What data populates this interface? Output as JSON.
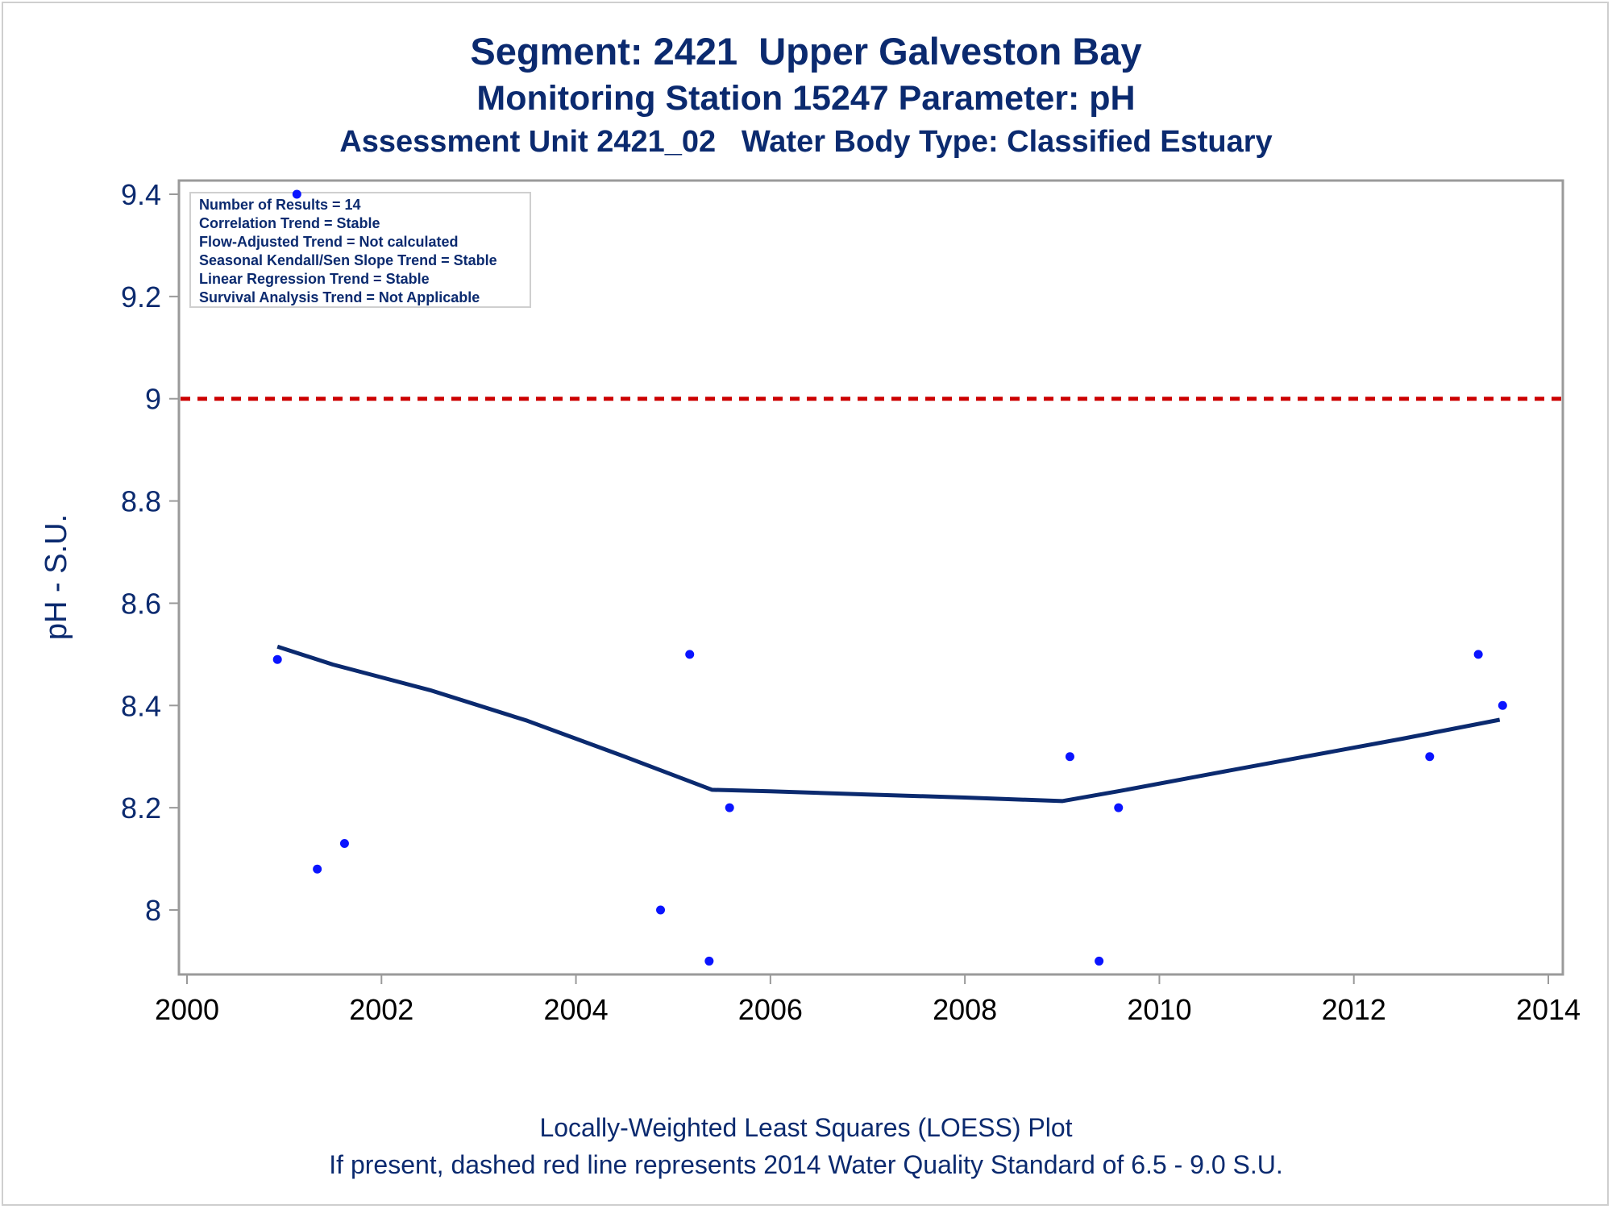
{
  "titles": {
    "line1": "Segment: 2421  Upper Galveston Bay",
    "line2": "Monitoring Station 15247 Parameter: pH",
    "line3": "Assessment Unit 2421_02   Water Body Type: Classified Estuary"
  },
  "footnotes": {
    "line1": "Locally-Weighted Least Squares (LOESS) Plot",
    "line2": "If present, dashed red line represents 2014 Water Quality Standard of 6.5 - 9.0 S.U."
  },
  "stats_box": {
    "lines": [
      "Number of Results = 14",
      "Correlation Trend = Stable",
      "Flow-Adjusted Trend = Not calculated",
      "Seasonal Kendall/Sen Slope Trend = Stable",
      "Linear Regression Trend = Stable",
      "Survival Analysis Trend = Not Applicable"
    ]
  },
  "colors": {
    "text": "#0b2a6f",
    "points": "#0a14ff",
    "loess": "#0b2a6f",
    "standard_line": "#cc0000",
    "axis": "#9a9a9a"
  },
  "chart_data": {
    "type": "scatter",
    "ylabel": "pH - S.U.",
    "xlabel": "",
    "xlim": [
      2000,
      2014
    ],
    "ylim": [
      7.9,
      9.42
    ],
    "x_ticks": [
      2000,
      2002,
      2004,
      2006,
      2008,
      2010,
      2012,
      2014
    ],
    "y_ticks": [
      8,
      8.2,
      8.4,
      8.6,
      8.8,
      9,
      9.2,
      9.4
    ],
    "y_tick_labels": [
      "8",
      "8.2",
      "8.4",
      "8.6",
      "8.8",
      "9",
      "9.2",
      "9.4"
    ],
    "grid": false,
    "series": [
      {
        "kind": "points",
        "x": [
          2000.93,
          2001.13,
          2001.34,
          2001.62,
          2004.87,
          2005.17,
          2005.37,
          2005.58,
          2009.08,
          2009.38,
          2009.58,
          2012.78,
          2013.28,
          2013.53
        ],
        "y": [
          8.49,
          9.4,
          8.08,
          8.13,
          8.0,
          8.5,
          7.9,
          8.2,
          8.3,
          7.9,
          8.2,
          8.3,
          8.5,
          8.4
        ]
      },
      {
        "kind": "loess",
        "x": [
          2000.93,
          2001.5,
          2002.5,
          2003.5,
          2004.5,
          2005.4,
          2006.0,
          2007.0,
          2008.0,
          2009.0,
          2009.6,
          2010.5,
          2011.5,
          2012.5,
          2013.5
        ],
        "y": [
          8.515,
          8.48,
          8.43,
          8.37,
          8.3,
          8.235,
          8.232,
          8.226,
          8.22,
          8.213,
          8.233,
          8.265,
          8.3,
          8.335,
          8.372
        ]
      }
    ],
    "reference_line": {
      "y": 9.0,
      "style": "dashed"
    }
  }
}
